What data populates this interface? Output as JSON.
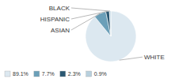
{
  "chart_data": {
    "type": "pie",
    "categories": [
      "WHITE",
      "ASIAN",
      "HISPANIC",
      "BLACK"
    ],
    "values": [
      89.1,
      7.7,
      2.3,
      0.9
    ],
    "value_labels": [
      "89.1%",
      "7.7%",
      "2.3%",
      "0.9%"
    ],
    "colors": [
      "#dce8f0",
      "#6b9fb8",
      "#2b5872",
      "#b8d0de"
    ],
    "legend": "lower left"
  }
}
